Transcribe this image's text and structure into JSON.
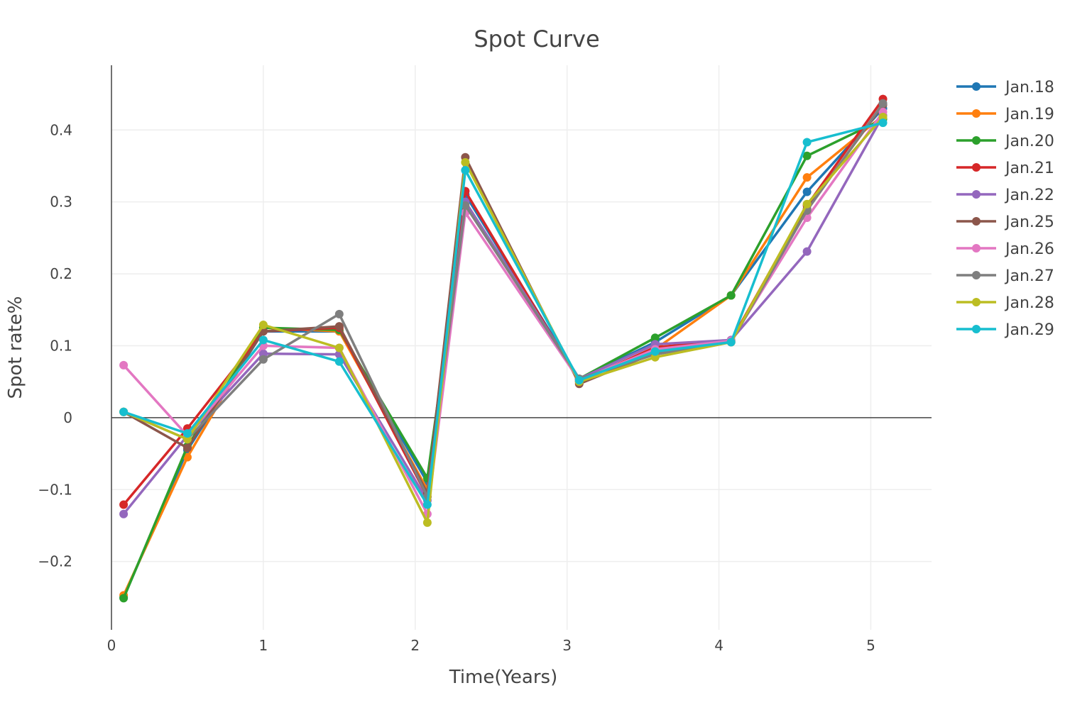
{
  "chart_data": {
    "type": "line",
    "title": "Spot Curve",
    "xlabel": "Time(Years)",
    "ylabel": "Spot rate%",
    "xlim": [
      0,
      5.4
    ],
    "ylim": [
      -0.295,
      0.49
    ],
    "xticks": [
      0,
      1,
      2,
      3,
      4,
      5
    ],
    "xtick_labels": [
      "0",
      "1",
      "2",
      "3",
      "4",
      "5"
    ],
    "yticks": [
      -0.2,
      -0.1,
      0,
      0.1,
      0.2,
      0.3,
      0.4
    ],
    "ytick_labels": [
      "−0.2",
      "−0.1",
      "0",
      "0.1",
      "0.2",
      "0.3",
      "0.4"
    ],
    "grid": true,
    "legend_position": "right",
    "x": [
      0.08,
      0.5,
      1.0,
      1.5,
      2.08,
      2.33,
      3.08,
      3.58,
      4.08,
      4.58,
      5.08
    ],
    "series": [
      {
        "name": "Jan.18",
        "color": "#1f77b4",
        "values": [
          -0.25,
          -0.045,
          0.12,
          0.12,
          -0.09,
          0.31,
          0.054,
          0.105,
          0.17,
          0.314,
          0.43
        ]
      },
      {
        "name": "Jan.19",
        "color": "#ff7f0e",
        "values": [
          -0.247,
          -0.055,
          0.125,
          0.12,
          -0.1,
          0.3,
          0.052,
          0.095,
          0.17,
          0.334,
          0.42
        ]
      },
      {
        "name": "Jan.20",
        "color": "#2ca02c",
        "values": [
          -0.251,
          -0.04,
          0.125,
          0.122,
          -0.084,
          0.3,
          0.054,
          0.111,
          0.17,
          0.364,
          0.415
        ]
      },
      {
        "name": "Jan.21",
        "color": "#d62728",
        "values": [
          -0.121,
          -0.015,
          0.12,
          0.125,
          -0.11,
          0.315,
          0.05,
          0.098,
          0.107,
          0.295,
          0.443
        ]
      },
      {
        "name": "Jan.22",
        "color": "#9467bd",
        "values": [
          -0.134,
          -0.025,
          0.089,
          0.088,
          -0.115,
          0.3,
          0.054,
          0.102,
          0.108,
          0.231,
          0.42
        ]
      },
      {
        "name": "Jan.25",
        "color": "#8c564b",
        "values": [
          0.008,
          -0.042,
          0.12,
          0.127,
          -0.105,
          0.362,
          0.047,
          0.09,
          0.105,
          0.29,
          0.435
        ]
      },
      {
        "name": "Jan.26",
        "color": "#e377c2",
        "values": [
          0.073,
          -0.025,
          0.1,
          0.097,
          -0.134,
          0.285,
          0.052,
          0.095,
          0.107,
          0.278,
          0.425
        ]
      },
      {
        "name": "Jan.27",
        "color": "#7f7f7f",
        "values": [
          0.008,
          -0.03,
          0.081,
          0.144,
          -0.11,
          0.295,
          0.054,
          0.088,
          0.105,
          0.288,
          0.437
        ]
      },
      {
        "name": "Jan.28",
        "color": "#bcbd22",
        "values": [
          0.008,
          -0.03,
          0.129,
          0.097,
          -0.146,
          0.355,
          0.05,
          0.084,
          0.105,
          0.297,
          0.418
        ]
      },
      {
        "name": "Jan.29",
        "color": "#17becf",
        "values": [
          0.008,
          -0.022,
          0.108,
          0.078,
          -0.121,
          0.344,
          0.052,
          0.092,
          0.105,
          0.383,
          0.41
        ]
      }
    ]
  }
}
